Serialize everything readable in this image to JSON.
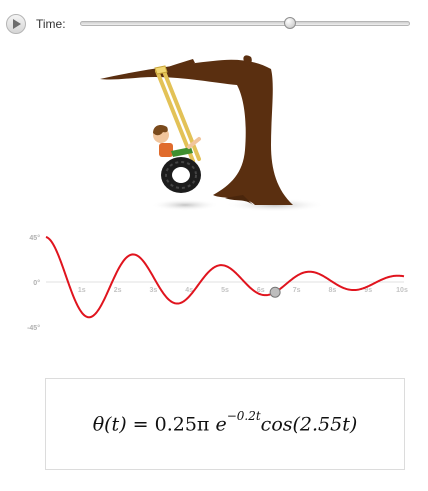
{
  "toolbar": {
    "play_icon": "play-icon",
    "time_label": "Time:",
    "time_slider": {
      "min": 0,
      "max": 10,
      "value": 6.4,
      "unit": "s"
    }
  },
  "colors": {
    "curve": "#e0141e",
    "tree": "#5a2f10",
    "rope": "#f1d774",
    "tire": "#1c1c1c"
  },
  "chart_data": {
    "type": "line",
    "title": "",
    "xlabel": "",
    "ylabel": "",
    "y_ticks": [
      "45°",
      "0°",
      "-45°"
    ],
    "x_ticks": [
      "1s",
      "2s",
      "3s",
      "4s",
      "5s",
      "6s",
      "7s",
      "8s",
      "9s",
      "10s"
    ],
    "x_range": [
      0,
      10
    ],
    "y_range_deg": [
      -45,
      45
    ],
    "function": {
      "amplitude_deg": 45,
      "decay": 0.2,
      "omega": 2.55
    },
    "marker_t": 6.4
  },
  "formula": {
    "lhs": "θ(t) = ",
    "coef": "0.25π",
    "base": "e",
    "exponent": "−0.2t",
    "tail": "cos(2.55t)"
  }
}
